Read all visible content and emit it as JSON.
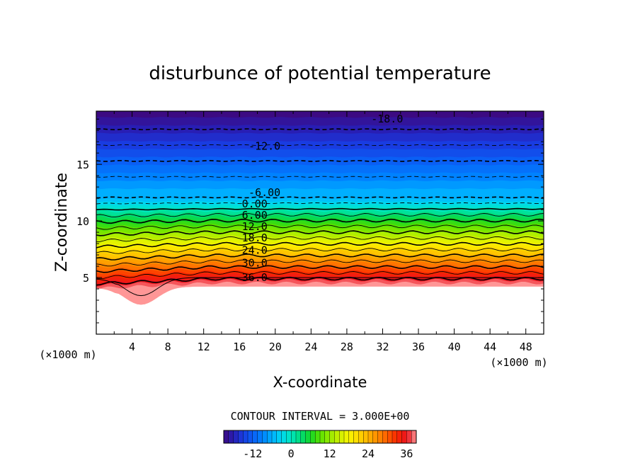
{
  "chart_data": {
    "type": "contour",
    "title": "disturbunce of potential temperature",
    "xlabel": "X-coordinate",
    "ylabel": "Z-coordinate",
    "x_unit_left": "(×1000 m)",
    "x_unit_right": "(×1000 m)",
    "xlim": [
      0,
      50
    ],
    "ylim": [
      0,
      19.7
    ],
    "x_ticks": [
      4,
      8,
      12,
      16,
      20,
      24,
      28,
      32,
      36,
      40,
      44,
      48
    ],
    "y_ticks": [
      5,
      10,
      15
    ],
    "contour_interval_text": "CONTOUR INTERVAL = 3.000E+00",
    "contour_interval": 3,
    "level_min": -21,
    "level_max": 39,
    "contour_labels": [
      {
        "text": "-18.0",
        "value": -18,
        "x": 32.5,
        "y": 19.0
      },
      {
        "text": "-12.0",
        "value": -12,
        "x": 18.8,
        "y": 16.6
      },
      {
        "text": "-6.00",
        "value": -6,
        "x": 18.8,
        "y": 12.5
      },
      {
        "text": "0.00",
        "value": 0,
        "x": 17.7,
        "y": 11.5
      },
      {
        "text": "6.00",
        "value": 6,
        "x": 17.7,
        "y": 10.5
      },
      {
        "text": "12.0",
        "value": 12,
        "x": 17.7,
        "y": 9.5
      },
      {
        "text": "18.0",
        "value": 18,
        "x": 17.7,
        "y": 8.5
      },
      {
        "text": "24.0",
        "value": 24,
        "x": 17.7,
        "y": 7.4
      },
      {
        "text": "30.0",
        "value": 30,
        "x": 17.7,
        "y": 6.3
      },
      {
        "text": "36.0",
        "value": 36,
        "x": 17.7,
        "y": 5.0
      }
    ],
    "colorbar": {
      "ticks": [
        -12,
        0,
        12,
        24,
        36
      ],
      "tick_labels": [
        "-12",
        "0",
        "12",
        "24",
        "36"
      ]
    },
    "colors": {
      "cold_end": "#3c0a82",
      "warm_end": "#ff9a9a",
      "axis": "#000000"
    }
  }
}
